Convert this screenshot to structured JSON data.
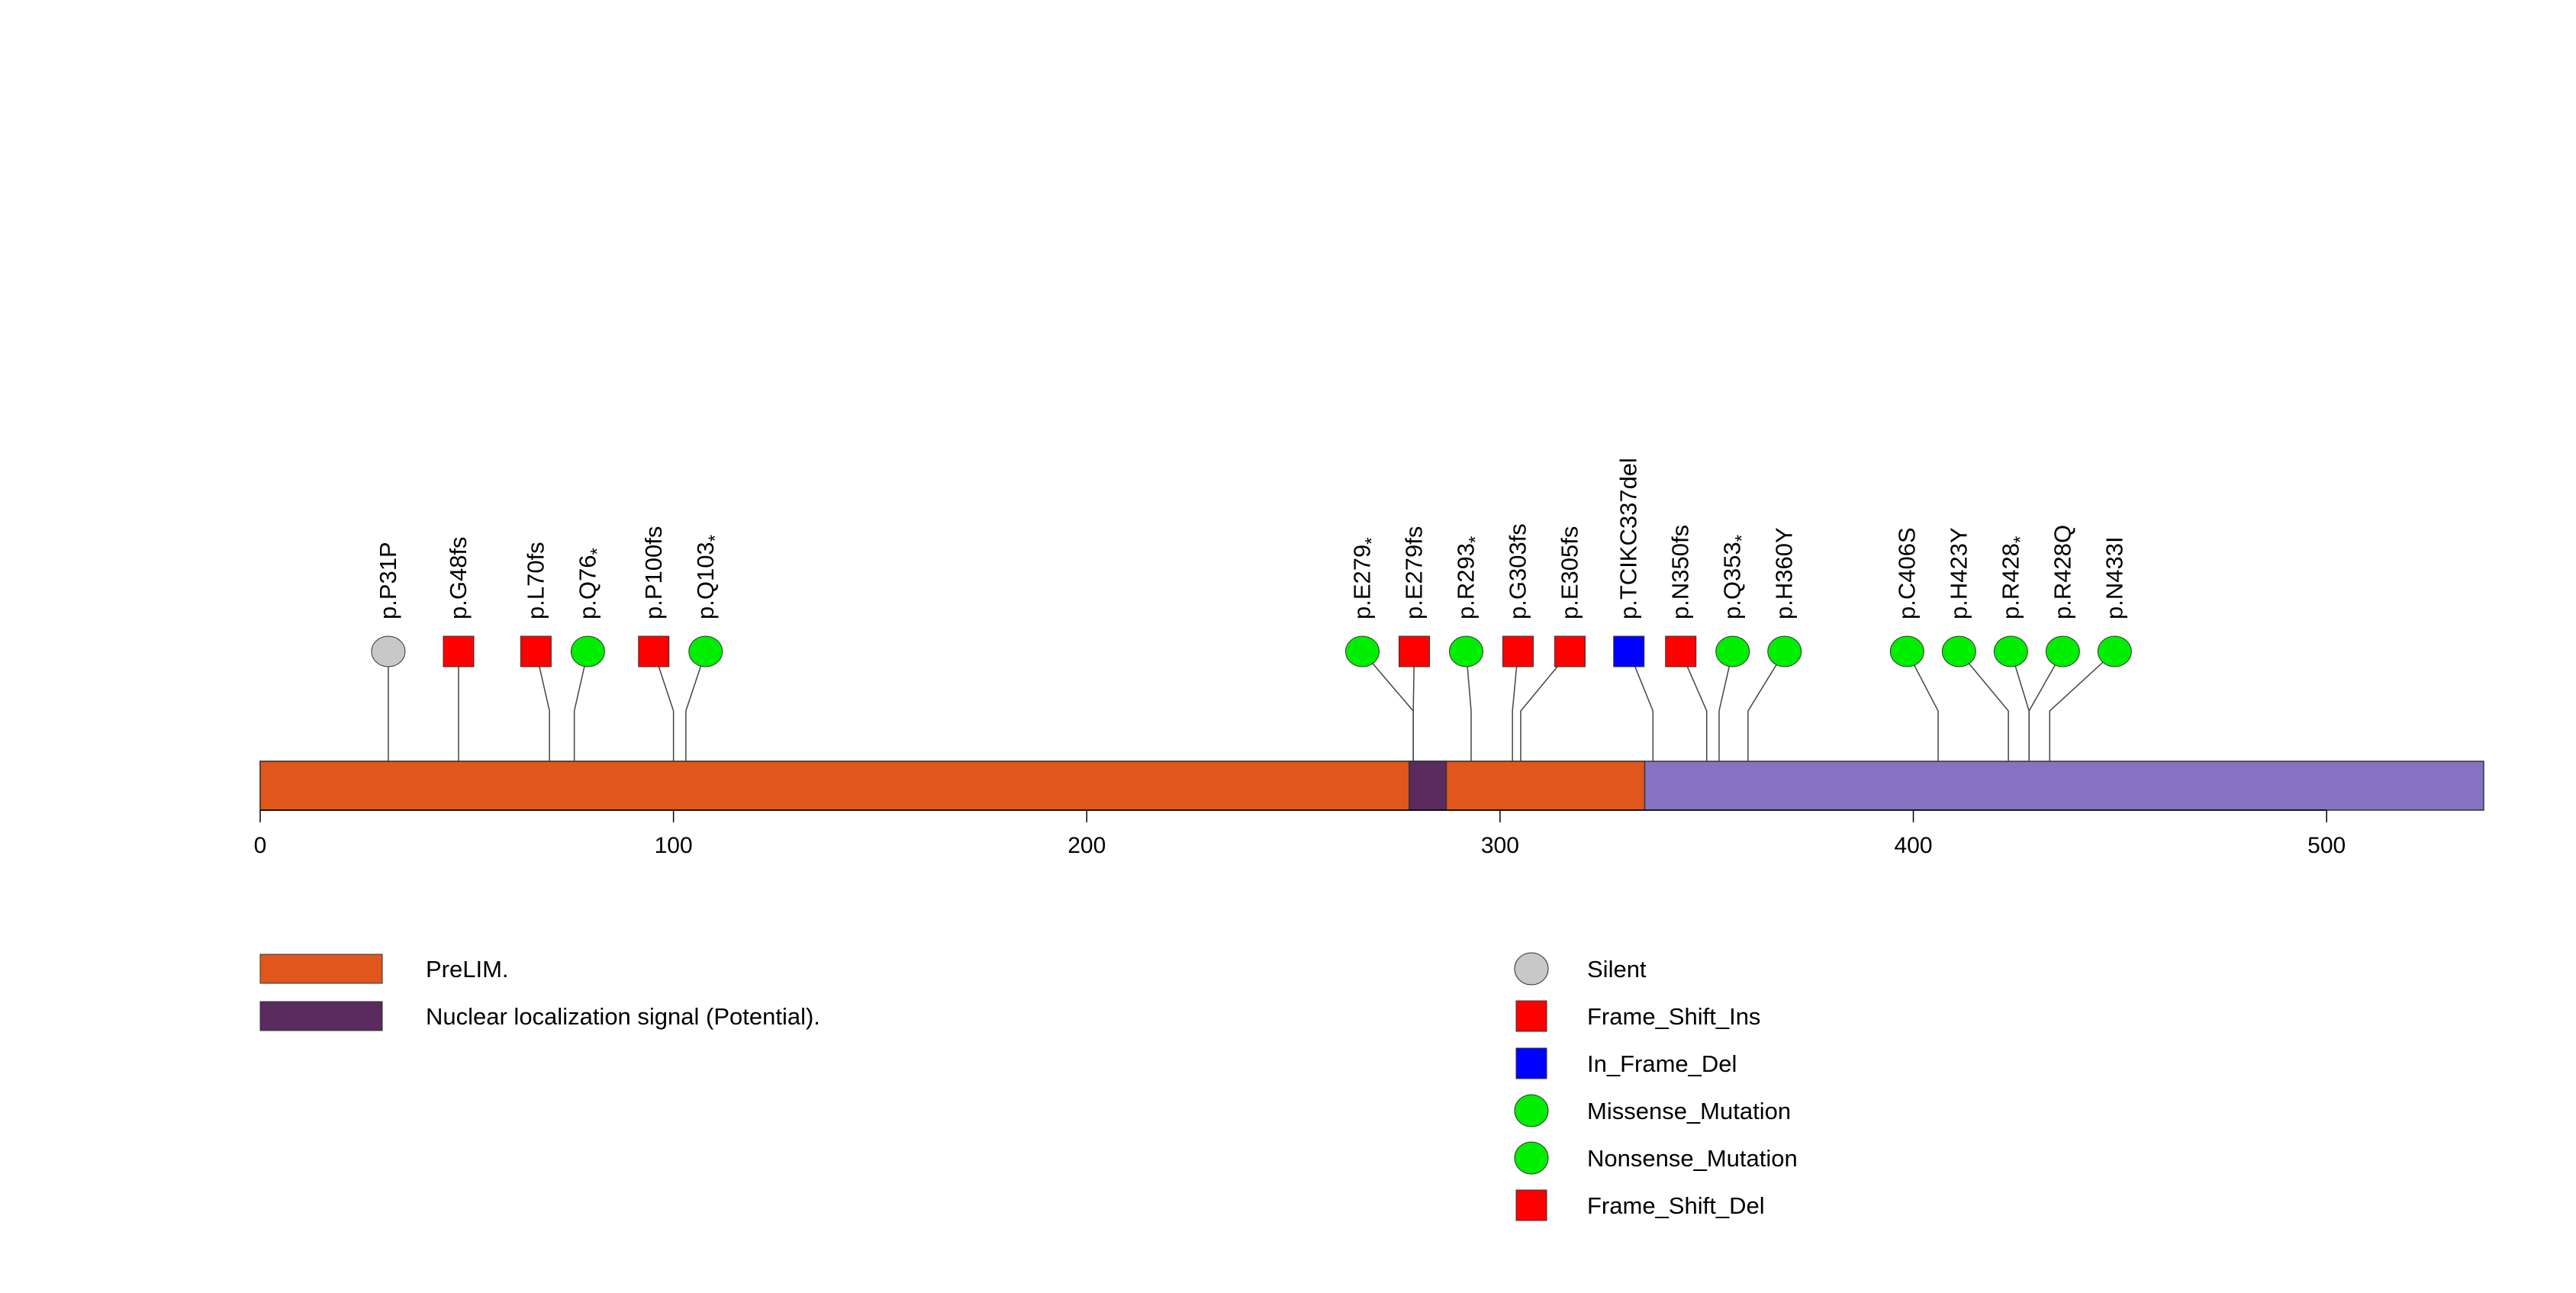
{
  "chart_data": {
    "type": "lollipop",
    "title": "",
    "xlabel": "",
    "ylabel": "",
    "xlim": [
      0,
      538
    ],
    "x_ticks": [
      0,
      100,
      200,
      300,
      400,
      500
    ],
    "x_tick_labels": [
      "0",
      "100",
      "200",
      "300",
      "400",
      "500"
    ],
    "protein_color": "#8573C2",
    "domains": [
      {
        "name": "PreLIM.",
        "start": 0,
        "end": 335,
        "color": "#E0561B"
      },
      {
        "name": "Nuclear localization signal (Potential).",
        "start": 278,
        "end": 287,
        "color": "#5B2A5E"
      }
    ],
    "mutation_types": [
      {
        "name": "Silent",
        "shape": "circle",
        "color": "#C8C8C8"
      },
      {
        "name": "Frame_Shift_Ins",
        "shape": "square",
        "color": "#FF0000"
      },
      {
        "name": "In_Frame_Del",
        "shape": "square",
        "color": "#0000FF"
      },
      {
        "name": "Missense_Mutation",
        "shape": "circle",
        "color": "#00EE00"
      },
      {
        "name": "Nonsense_Mutation",
        "shape": "circle",
        "color": "#00EE00"
      },
      {
        "name": "Frame_Shift_Del",
        "shape": "square",
        "color": "#FF0000"
      }
    ],
    "mutations": [
      {
        "label": "p.P31P",
        "position": 31,
        "type": "Silent"
      },
      {
        "label": "p.G48fs",
        "position": 48,
        "type": "Frame_Shift_Ins"
      },
      {
        "label": "p.L70fs",
        "position": 70,
        "type": "Frame_Shift_Del"
      },
      {
        "label": "p.Q76",
        "star": true,
        "position": 76,
        "type": "Nonsense_Mutation"
      },
      {
        "label": "p.P100fs",
        "position": 100,
        "type": "Frame_Shift_Del"
      },
      {
        "label": "p.Q103",
        "star": true,
        "position": 103,
        "type": "Nonsense_Mutation"
      },
      {
        "label": "p.E279",
        "star": true,
        "position": 279,
        "type": "Nonsense_Mutation"
      },
      {
        "label": "p.E279fs",
        "position": 279,
        "type": "Frame_Shift_Del"
      },
      {
        "label": "p.R293",
        "star": true,
        "position": 293,
        "type": "Nonsense_Mutation"
      },
      {
        "label": "p.G303fs",
        "position": 303,
        "type": "Frame_Shift_Del"
      },
      {
        "label": "p.E305fs",
        "position": 305,
        "type": "Frame_Shift_Del"
      },
      {
        "label": "p.TCIKC337del",
        "position": 337,
        "type": "In_Frame_Del"
      },
      {
        "label": "p.N350fs",
        "position": 350,
        "type": "Frame_Shift_Del"
      },
      {
        "label": "p.Q353",
        "star": true,
        "position": 353,
        "type": "Nonsense_Mutation"
      },
      {
        "label": "p.H360Y",
        "position": 360,
        "type": "Missense_Mutation"
      },
      {
        "label": "p.C406S",
        "position": 406,
        "type": "Missense_Mutation"
      },
      {
        "label": "p.H423Y",
        "position": 423,
        "type": "Missense_Mutation"
      },
      {
        "label": "p.R428",
        "star": true,
        "position": 428,
        "type": "Nonsense_Mutation"
      },
      {
        "label": "p.R428Q",
        "position": 428,
        "type": "Missense_Mutation"
      },
      {
        "label": "p.N433I",
        "position": 433,
        "type": "Missense_Mutation"
      }
    ]
  }
}
